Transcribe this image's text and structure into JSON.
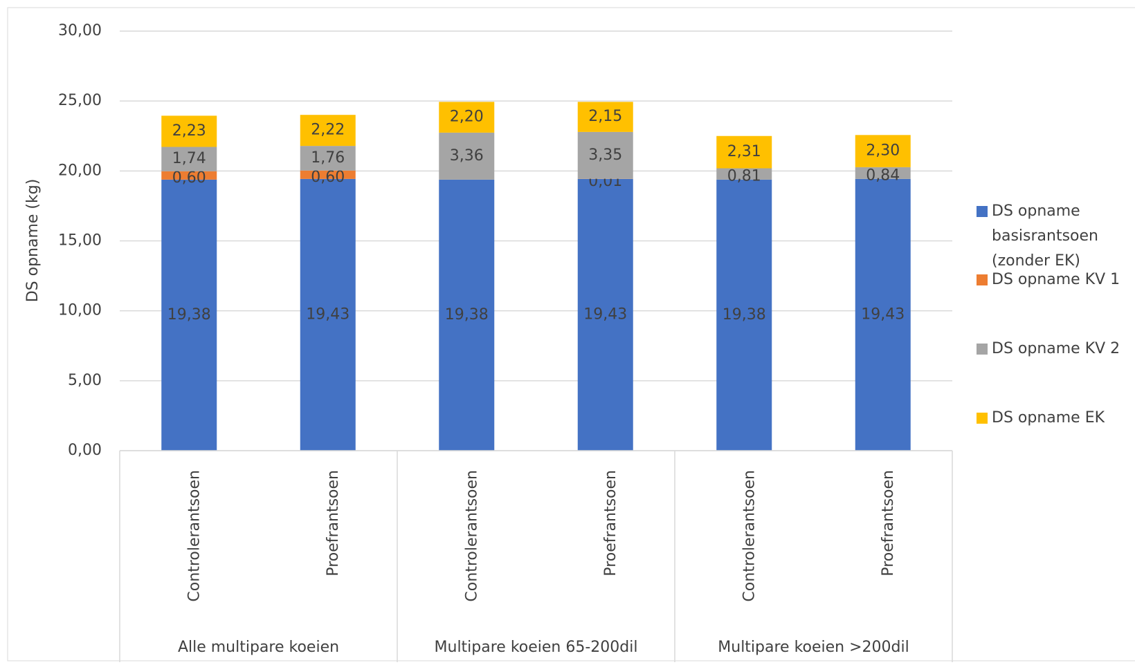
{
  "chart_data": {
    "type": "stacked_bar",
    "y_label": "DS opname (kg)",
    "categories": [
      "Controlerantsoen",
      "Proefrantsoen",
      "Controlerantsoen",
      "Proefrantsoen",
      "Controlerantsoen",
      "Proefrantsoen"
    ],
    "groups": [
      "Alle multipare koeien",
      "Multipare koeien 65-200dil",
      "Multipare koeien >200dil"
    ],
    "series": [
      {
        "name": "DS opname basisrantsoen (zonder EK)",
        "color": "#4472c4",
        "values": [
          19.38,
          19.43,
          19.38,
          19.43,
          19.38,
          19.43
        ],
        "value_labels": [
          "19,38",
          "19,43",
          "19,38",
          "19,43",
          "19,38",
          "19,43"
        ]
      },
      {
        "name": "DS opname KV 1",
        "color": "#ed7d31",
        "values": [
          0.6,
          0.6,
          null,
          0.01,
          null,
          null
        ],
        "value_labels": [
          "0,60",
          "0,60",
          null,
          "0,01",
          null,
          null
        ]
      },
      {
        "name": "DS opname KV 2",
        "color": "#a5a5a5",
        "values": [
          1.74,
          1.76,
          3.36,
          3.35,
          0.81,
          0.84
        ],
        "value_labels": [
          "1,74",
          "1,76",
          "3,36",
          "3,35",
          "0,81",
          "0,84"
        ]
      },
      {
        "name": "DS opname EK",
        "color": "#ffc000",
        "values": [
          2.23,
          2.22,
          2.2,
          2.15,
          2.31,
          2.3
        ],
        "value_labels": [
          "2,23",
          "2,22",
          "2,20",
          "2,15",
          "2,31",
          "2,30"
        ]
      }
    ],
    "ylim": [
      0,
      30
    ],
    "yticks": [
      {
        "value": 0,
        "label": "0,00"
      },
      {
        "value": 5,
        "label": "5,00"
      },
      {
        "value": 10,
        "label": "10,00"
      },
      {
        "value": 15,
        "label": "15,00"
      },
      {
        "value": 20,
        "label": "20,00"
      },
      {
        "value": 25,
        "label": "25,00"
      },
      {
        "value": 30,
        "label": "30,00"
      }
    ],
    "grid": true,
    "legend": "right"
  }
}
